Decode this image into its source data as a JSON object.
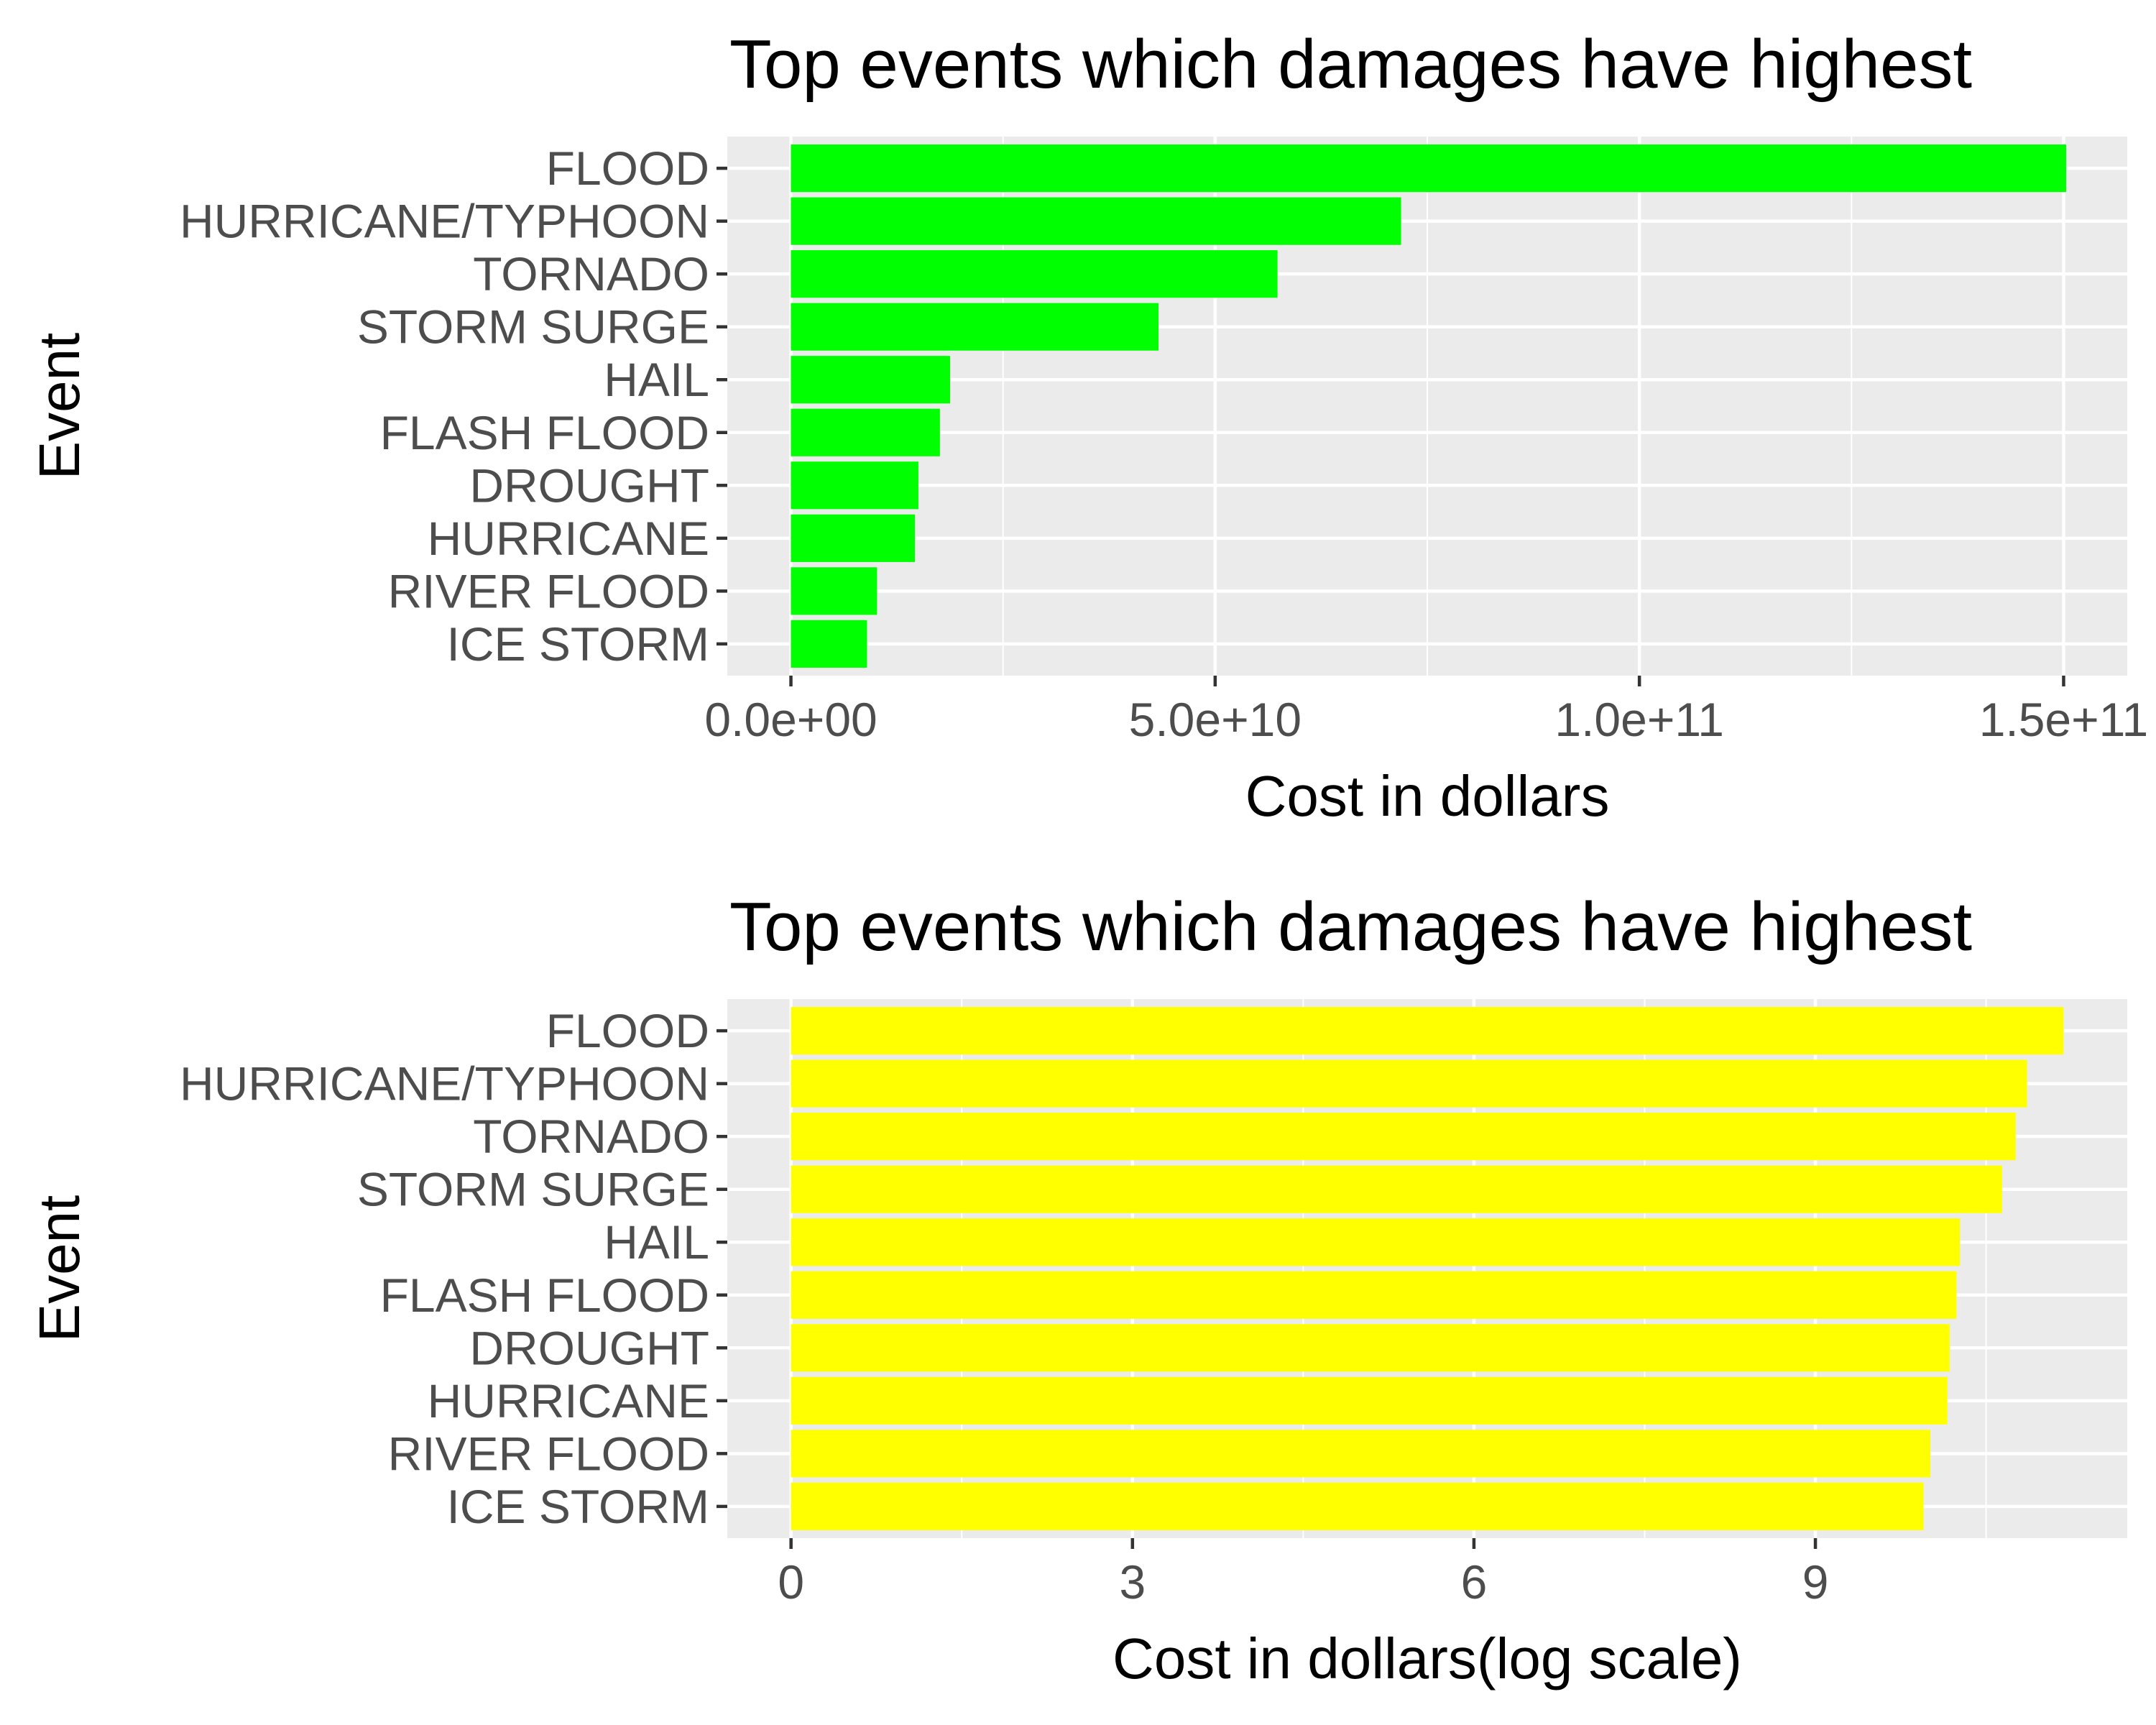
{
  "chart_data": [
    {
      "type": "bar",
      "orientation": "horizontal",
      "title": "Top events which damages have highest",
      "xlabel": "Cost in dollars",
      "ylabel": "Event",
      "categories": [
        "FLOOD",
        "HURRICANE/TYPHOON",
        "TORNADO",
        "STORM SURGE",
        "HAIL",
        "FLASH FLOOD",
        "DROUGHT",
        "HURRICANE",
        "RIVER FLOOD",
        "ICE STORM"
      ],
      "values": [
        150300000000,
        71910000000,
        57350000000,
        43320000000,
        18760000000,
        17560000000,
        15020000000,
        14610000000,
        10150000000,
        8970000000
      ],
      "xlim": [
        -7500000000,
        157500000000
      ],
      "xticks": [
        0,
        50000000000,
        100000000000,
        150000000000
      ],
      "xtick_labels": [
        "0.0e+00",
        "5.0e+10",
        "1.0e+11",
        "1.5e+11"
      ],
      "bar_color": "#00ff00",
      "panel_background": "#ebebeb",
      "grid": true,
      "legend": "none"
    },
    {
      "type": "bar",
      "orientation": "horizontal",
      "title": "Top events which damages have highest",
      "xlabel": "Cost in dollars(log scale)",
      "ylabel": "Event",
      "categories": [
        "FLOOD",
        "HURRICANE/TYPHOON",
        "TORNADO",
        "STORM SURGE",
        "HAIL",
        "FLASH FLOOD",
        "DROUGHT",
        "HURRICANE",
        "RIVER FLOOD",
        "ICE STORM"
      ],
      "values": [
        11.18,
        10.86,
        10.76,
        10.64,
        10.27,
        10.24,
        10.18,
        10.16,
        10.01,
        9.95
      ],
      "xlim": [
        -0.56,
        11.74
      ],
      "xticks": [
        0,
        3,
        6,
        9
      ],
      "xtick_labels": [
        "0",
        "3",
        "6",
        "9"
      ],
      "bar_color": "#ffff00",
      "panel_background": "#ebebeb",
      "grid": true,
      "legend": "none"
    }
  ]
}
